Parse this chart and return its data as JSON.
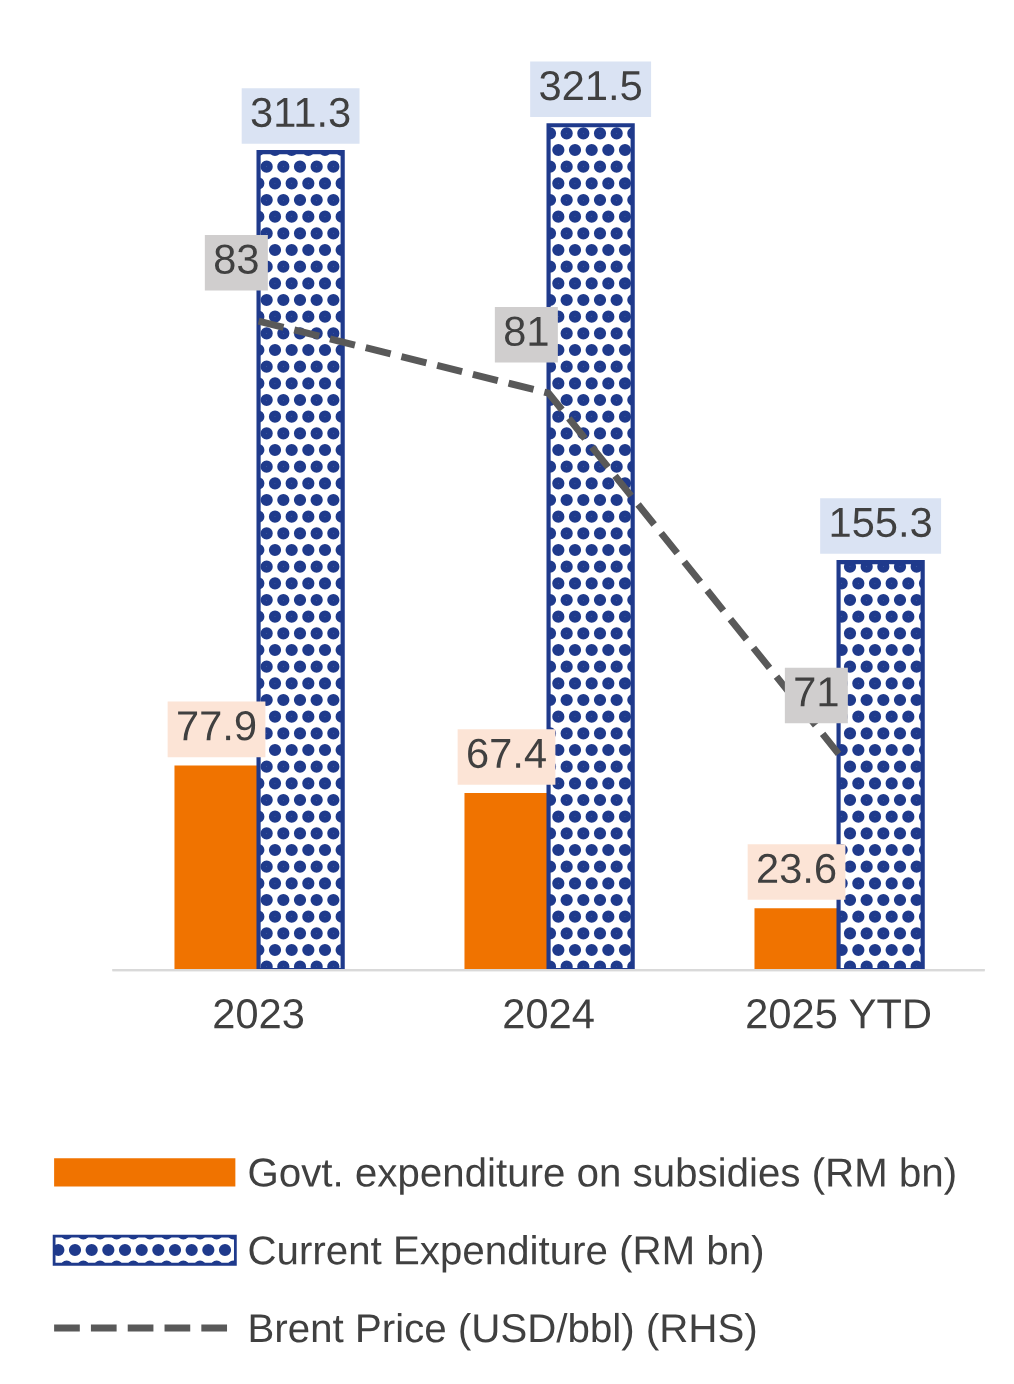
{
  "chart_data": {
    "type": "bar",
    "categories": [
      "2023",
      "2024",
      "2025 YTD"
    ],
    "series": [
      {
        "name": "Govt. expenditure on subsidies (RM bn)",
        "color": "#f07300",
        "values": [
          77.9,
          67.4,
          23.6
        ]
      },
      {
        "name": "Current Expenditure (RM bn)",
        "color": "#1f3a8c",
        "values": [
          311.3,
          321.5,
          155.3
        ]
      },
      {
        "name": "Brent Price (USD/bbl) (RHS)",
        "type": "line",
        "axis": "y2",
        "color": "#595959",
        "line_style": "dashed",
        "values": [
          83,
          81,
          71
        ]
      }
    ],
    "data_labels": true,
    "legend": "bottom",
    "grid": false,
    "tick_labels": "x"
  }
}
